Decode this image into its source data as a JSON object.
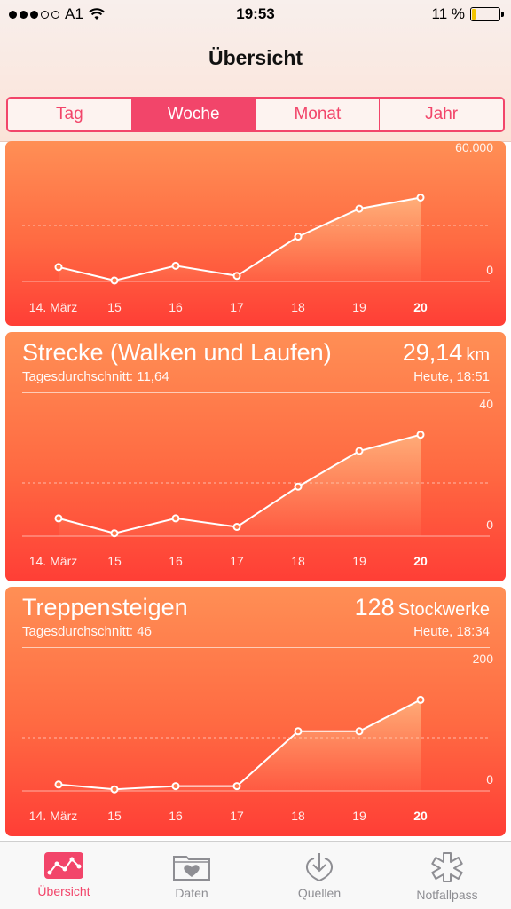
{
  "status_bar": {
    "carrier": "A1",
    "time": "19:53",
    "battery": "11 %"
  },
  "header": {
    "title": "Übersicht"
  },
  "segments": [
    {
      "label": "Tag",
      "active": false
    },
    {
      "label": "Woche",
      "active": true
    },
    {
      "label": "Monat",
      "active": false
    },
    {
      "label": "Jahr",
      "active": false
    }
  ],
  "cards": [
    {
      "title": "",
      "chart_data": {
        "type": "area",
        "x_labels": [
          "14. März",
          "15",
          "16",
          "17",
          "18",
          "19",
          "20"
        ],
        "values": [
          7700,
          500,
          8400,
          3000,
          24000,
          39000,
          45000
        ],
        "ylim": [
          0,
          60000
        ],
        "y_tick_labels": [
          "60.000",
          "0"
        ]
      }
    },
    {
      "title": "Strecke (Walken und Laufen)",
      "value": "29,14",
      "unit": "km",
      "average": "Tagesdurchschnitt: 11,64",
      "time": "Heute, 18:51",
      "chart_data": {
        "type": "area",
        "x_labels": [
          "14. März",
          "15",
          "16",
          "17",
          "18",
          "19",
          "20"
        ],
        "values": [
          6.7,
          1.1,
          6.7,
          3.5,
          18.6,
          32.0,
          38.1
        ],
        "ylim": [
          0,
          40
        ],
        "y_tick_labels": [
          "40",
          "0"
        ]
      }
    },
    {
      "title": "Treppensteigen",
      "value": "128",
      "unit": "Stockwerke",
      "average": "Tagesdurchschnitt: 46",
      "time": "Heute, 18:34",
      "chart_data": {
        "type": "area",
        "x_labels": [
          "14. März",
          "15",
          "16",
          "17",
          "18",
          "19",
          "20"
        ],
        "values": [
          12,
          3,
          9,
          9,
          112,
          112,
          171
        ],
        "ylim": [
          0,
          200
        ],
        "y_tick_labels": [
          "200",
          "0"
        ]
      }
    }
  ],
  "tabbar": [
    {
      "label": "Übersicht",
      "icon": "chart-icon",
      "active": true
    },
    {
      "label": "Daten",
      "icon": "heart-folder-icon",
      "active": false
    },
    {
      "label": "Quellen",
      "icon": "download-heart-icon",
      "active": false
    },
    {
      "label": "Notfallpass",
      "icon": "asterisk-icon",
      "active": false
    }
  ],
  "colors": {
    "accent": "#f2456a",
    "card_top": "#ff8f55",
    "card_bottom": "#ff3e36"
  }
}
